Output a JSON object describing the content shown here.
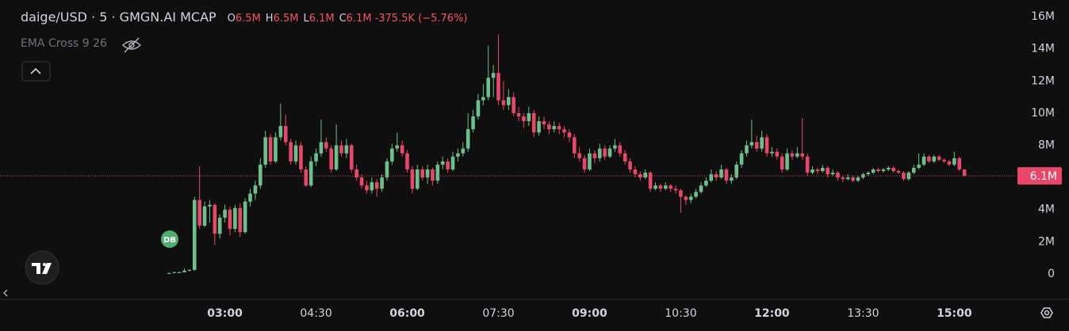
{
  "chart_data": {
    "type": "candlestick",
    "title": "daige/USD · 5 · GMGN.AI MCAP",
    "ohlc_legend": [
      {
        "key": "O",
        "value": "6.5M"
      },
      {
        "key": "H",
        "value": "6.5M"
      },
      {
        "key": "L",
        "value": "6.1M"
      },
      {
        "key": "C",
        "value": "6.1M"
      }
    ],
    "change": "-375.5K (−5.76%)",
    "indicator": "EMA Cross 9 26",
    "marker": "DB",
    "last_price_label": "6.1M",
    "up_color": "#6cc08b",
    "down_color": "#e9476a",
    "grid": false,
    "xlim": [
      -42,
      960
    ],
    "xticks": [
      {
        "value": 180,
        "label": "03:00"
      },
      {
        "value": 270,
        "label": "04:30"
      },
      {
        "value": 360,
        "label": "06:00"
      },
      {
        "value": 450,
        "label": "07:30"
      },
      {
        "value": 540,
        "label": "09:00"
      },
      {
        "value": 630,
        "label": "10:30"
      },
      {
        "value": 720,
        "label": "12:00"
      },
      {
        "value": 810,
        "label": "13:30"
      },
      {
        "value": 900,
        "label": "15:00"
      }
    ],
    "ylim": [
      -1.58,
      17.04
    ],
    "yticks": [
      0,
      {
        "value": 2,
        "label": "2M"
      },
      {
        "value": 4,
        "label": "4M"
      },
      {
        "value": 6,
        "label": "6M"
      },
      {
        "value": 8,
        "label": "8M"
      },
      {
        "value": 10,
        "label": "10M"
      },
      {
        "value": 12,
        "label": "12M"
      },
      {
        "value": 14,
        "label": "14M"
      },
      {
        "value": 16,
        "label": "16M"
      }
    ],
    "x": [
      125,
      130,
      135,
      140,
      145,
      150,
      155,
      160,
      165,
      170,
      175,
      180,
      185,
      190,
      195,
      200,
      205,
      210,
      215,
      220,
      225,
      230,
      235,
      240,
      245,
      250,
      255,
      260,
      265,
      270,
      275,
      280,
      285,
      290,
      295,
      300,
      305,
      310,
      315,
      320,
      325,
      330,
      335,
      340,
      345,
      350,
      355,
      360,
      365,
      370,
      375,
      380,
      385,
      390,
      395,
      400,
      405,
      410,
      415,
      420,
      425,
      430,
      435,
      440,
      445,
      450,
      455,
      460,
      465,
      470,
      475,
      480,
      485,
      490,
      495,
      500,
      505,
      510,
      515,
      520,
      525,
      530,
      535,
      540,
      545,
      550,
      555,
      560,
      565,
      570,
      575,
      580,
      585,
      590,
      595,
      600,
      605,
      610,
      615,
      620,
      625,
      630,
      635,
      640,
      645,
      650,
      655,
      660,
      665,
      670,
      675,
      680,
      685,
      690,
      695,
      700,
      705,
      710,
      715,
      720,
      725,
      730,
      735,
      740,
      745,
      750,
      755,
      760,
      765,
      770,
      775,
      780,
      785,
      790,
      795,
      800,
      805,
      810,
      815,
      820,
      825,
      830,
      835,
      840,
      845,
      850,
      855,
      860,
      865,
      870,
      875,
      880,
      885,
      890,
      895,
      900,
      905,
      910
    ],
    "candles": [
      [
        0.05,
        0.1,
        0.0,
        0.05
      ],
      [
        0.05,
        0.15,
        0.05,
        0.1
      ],
      [
        0.1,
        0.15,
        0.05,
        0.1
      ],
      [
        0.1,
        0.35,
        0.1,
        0.2
      ],
      [
        0.2,
        0.3,
        0.15,
        0.25
      ],
      [
        0.25,
        4.8,
        0.2,
        4.6
      ],
      [
        4.6,
        6.7,
        2.8,
        3.0
      ],
      [
        3.0,
        4.5,
        2.9,
        4.2
      ],
      [
        4.2,
        4.6,
        3.2,
        4.3
      ],
      [
        4.3,
        4.4,
        1.8,
        2.5
      ],
      [
        2.5,
        3.7,
        2.2,
        3.5
      ],
      [
        3.5,
        4.3,
        3.2,
        4.0
      ],
      [
        4.0,
        4.2,
        2.4,
        2.8
      ],
      [
        2.8,
        4.3,
        2.6,
        4.1
      ],
      [
        4.1,
        4.4,
        2.3,
        2.6
      ],
      [
        2.6,
        4.7,
        2.5,
        4.5
      ],
      [
        4.5,
        5.3,
        4.2,
        5.0
      ],
      [
        5.0,
        5.8,
        4.6,
        5.5
      ],
      [
        5.5,
        7.2,
        5.3,
        6.8
      ],
      [
        6.8,
        8.9,
        6.6,
        8.5
      ],
      [
        8.5,
        8.7,
        6.8,
        7.0
      ],
      [
        7.0,
        8.8,
        6.9,
        8.5
      ],
      [
        8.5,
        10.6,
        8.3,
        9.2
      ],
      [
        9.2,
        9.9,
        8.0,
        8.2
      ],
      [
        8.2,
        8.4,
        6.8,
        7.0
      ],
      [
        7.0,
        8.3,
        6.8,
        8.0
      ],
      [
        8.0,
        8.2,
        6.3,
        6.5
      ],
      [
        6.5,
        6.7,
        5.4,
        5.5
      ],
      [
        5.5,
        7.3,
        5.4,
        7.0
      ],
      [
        7.0,
        7.8,
        6.7,
        7.5
      ],
      [
        7.5,
        9.6,
        7.3,
        8.2
      ],
      [
        8.2,
        8.5,
        7.6,
        7.8
      ],
      [
        7.8,
        8.0,
        6.3,
        6.5
      ],
      [
        6.5,
        9.3,
        6.4,
        8.0
      ],
      [
        8.0,
        8.3,
        7.3,
        7.5
      ],
      [
        7.5,
        8.4,
        7.2,
        8.0
      ],
      [
        8.0,
        8.1,
        6.3,
        6.5
      ],
      [
        6.5,
        6.8,
        5.8,
        6.0
      ],
      [
        6.0,
        6.2,
        5.3,
        5.5
      ],
      [
        5.5,
        5.8,
        5.0,
        5.2
      ],
      [
        5.2,
        6.0,
        5.0,
        5.7
      ],
      [
        5.7,
        5.9,
        4.8,
        5.3
      ],
      [
        5.3,
        6.2,
        5.1,
        6.0
      ],
      [
        6.0,
        7.2,
        5.8,
        7.0
      ],
      [
        7.0,
        8.1,
        6.8,
        7.8
      ],
      [
        7.8,
        8.8,
        7.6,
        8.0
      ],
      [
        8.0,
        8.3,
        7.3,
        7.5
      ],
      [
        7.5,
        7.7,
        6.3,
        6.5
      ],
      [
        6.5,
        6.7,
        5.0,
        5.3
      ],
      [
        5.3,
        6.8,
        5.2,
        6.5
      ],
      [
        6.5,
        6.7,
        5.8,
        6.0
      ],
      [
        6.0,
        6.8,
        5.6,
        6.5
      ],
      [
        6.5,
        6.6,
        5.5,
        5.8
      ],
      [
        5.8,
        7.0,
        5.6,
        6.8
      ],
      [
        6.8,
        7.3,
        6.5,
        7.0
      ],
      [
        7.0,
        7.2,
        6.3,
        6.5
      ],
      [
        6.5,
        7.6,
        6.4,
        7.3
      ],
      [
        7.3,
        7.8,
        7.0,
        7.5
      ],
      [
        7.5,
        8.2,
        7.3,
        7.8
      ],
      [
        7.8,
        10.0,
        7.6,
        9.0
      ],
      [
        9.0,
        10.2,
        8.8,
        9.8
      ],
      [
        9.8,
        11.2,
        9.6,
        10.8
      ],
      [
        10.8,
        11.8,
        10.5,
        11.0
      ],
      [
        11.0,
        14.2,
        10.8,
        12.2
      ],
      [
        12.2,
        13.0,
        11.0,
        12.5
      ],
      [
        12.5,
        14.9,
        10.5,
        10.8
      ],
      [
        10.8,
        12.0,
        10.2,
        10.5
      ],
      [
        10.5,
        11.5,
        10.2,
        11.0
      ],
      [
        11.0,
        11.3,
        9.8,
        10.0
      ],
      [
        10.0,
        10.4,
        9.5,
        9.8
      ],
      [
        9.8,
        10.0,
        9.1,
        9.5
      ],
      [
        9.5,
        10.4,
        9.2,
        10.0
      ],
      [
        10.0,
        10.2,
        8.5,
        8.8
      ],
      [
        8.8,
        9.8,
        8.6,
        9.5
      ],
      [
        9.5,
        9.8,
        9.0,
        9.3
      ],
      [
        9.3,
        9.5,
        8.7,
        9.0
      ],
      [
        9.0,
        9.5,
        8.8,
        9.2
      ],
      [
        9.2,
        9.4,
        8.7,
        9.0
      ],
      [
        9.0,
        9.2,
        8.5,
        8.8
      ],
      [
        8.8,
        9.0,
        8.2,
        8.5
      ],
      [
        8.5,
        8.7,
        7.2,
        7.5
      ],
      [
        7.5,
        7.9,
        7.0,
        7.2
      ],
      [
        7.2,
        7.4,
        6.3,
        6.5
      ],
      [
        6.5,
        7.8,
        6.4,
        7.5
      ],
      [
        7.5,
        7.7,
        6.9,
        7.2
      ],
      [
        7.2,
        8.1,
        7.0,
        7.8
      ],
      [
        7.8,
        8.0,
        7.1,
        7.3
      ],
      [
        7.3,
        8.0,
        7.2,
        7.8
      ],
      [
        7.8,
        8.4,
        7.6,
        8.0
      ],
      [
        8.0,
        8.2,
        7.3,
        7.5
      ],
      [
        7.5,
        7.7,
        6.8,
        7.0
      ],
      [
        7.0,
        7.2,
        6.3,
        6.5
      ],
      [
        6.5,
        6.7,
        6.0,
        6.2
      ],
      [
        6.2,
        6.4,
        5.8,
        6.0
      ],
      [
        6.0,
        6.5,
        5.9,
        6.3
      ],
      [
        6.3,
        6.4,
        5.1,
        5.3
      ],
      [
        5.3,
        5.7,
        5.2,
        5.5
      ],
      [
        5.5,
        5.6,
        5.1,
        5.3
      ],
      [
        5.3,
        5.7,
        5.2,
        5.5
      ],
      [
        5.5,
        5.6,
        5.1,
        5.3
      ],
      [
        5.3,
        5.5,
        5.0,
        5.2
      ],
      [
        5.2,
        5.3,
        3.8,
        4.8
      ],
      [
        4.8,
        4.9,
        4.3,
        4.6
      ],
      [
        4.6,
        5.0,
        4.4,
        4.8
      ],
      [
        4.8,
        5.3,
        4.7,
        5.1
      ],
      [
        5.1,
        5.7,
        5.0,
        5.5
      ],
      [
        5.5,
        6.0,
        5.4,
        5.8
      ],
      [
        5.8,
        6.5,
        5.7,
        6.2
      ],
      [
        6.2,
        6.4,
        5.8,
        6.0
      ],
      [
        6.0,
        6.8,
        5.9,
        6.5
      ],
      [
        6.5,
        6.6,
        5.6,
        5.8
      ],
      [
        5.8,
        6.2,
        5.6,
        6.0
      ],
      [
        6.0,
        7.0,
        5.9,
        6.8
      ],
      [
        6.8,
        7.7,
        6.6,
        7.5
      ],
      [
        7.5,
        8.3,
        7.3,
        8.0
      ],
      [
        8.0,
        9.6,
        7.8,
        8.2
      ],
      [
        8.2,
        8.6,
        7.6,
        7.8
      ],
      [
        7.8,
        8.9,
        7.6,
        8.5
      ],
      [
        8.5,
        8.7,
        7.3,
        7.5
      ],
      [
        7.5,
        7.9,
        7.3,
        7.6
      ],
      [
        7.6,
        7.8,
        7.1,
        7.3
      ],
      [
        7.3,
        7.5,
        6.3,
        6.5
      ],
      [
        6.5,
        7.8,
        6.4,
        7.5
      ],
      [
        7.5,
        7.7,
        7.1,
        7.3
      ],
      [
        7.3,
        7.9,
        7.2,
        7.5
      ],
      [
        7.5,
        9.7,
        7.1,
        7.3
      ],
      [
        7.3,
        7.5,
        6.1,
        6.3
      ],
      [
        6.3,
        6.7,
        6.2,
        6.5
      ],
      [
        6.5,
        6.6,
        6.2,
        6.4
      ],
      [
        6.4,
        6.8,
        6.3,
        6.6
      ],
      [
        6.6,
        6.7,
        6.0,
        6.2
      ],
      [
        6.2,
        6.5,
        6.1,
        6.3
      ],
      [
        6.3,
        6.4,
        5.8,
        6.0
      ],
      [
        6.0,
        6.1,
        5.7,
        5.9
      ],
      [
        5.9,
        6.2,
        5.8,
        6.0
      ],
      [
        6.0,
        6.1,
        5.7,
        5.8
      ],
      [
        5.8,
        6.1,
        5.7,
        6.0
      ],
      [
        6.0,
        6.3,
        5.9,
        6.2
      ],
      [
        6.2,
        6.4,
        6.1,
        6.3
      ],
      [
        6.3,
        6.6,
        6.2,
        6.5
      ],
      [
        6.5,
        6.6,
        6.3,
        6.4
      ],
      [
        6.4,
        6.6,
        6.3,
        6.5
      ],
      [
        6.5,
        6.7,
        6.4,
        6.6
      ],
      [
        6.6,
        6.7,
        6.3,
        6.4
      ],
      [
        6.4,
        6.5,
        6.2,
        6.3
      ],
      [
        6.3,
        6.4,
        5.8,
        5.9
      ],
      [
        5.9,
        6.4,
        5.8,
        6.3
      ],
      [
        6.3,
        6.8,
        6.2,
        6.6
      ],
      [
        6.6,
        7.5,
        6.5,
        6.8
      ],
      [
        6.8,
        7.5,
        6.7,
        7.3
      ],
      [
        7.3,
        7.4,
        6.9,
        7.0
      ],
      [
        7.0,
        7.4,
        6.9,
        7.3
      ],
      [
        7.3,
        7.4,
        7.0,
        7.1
      ],
      [
        7.1,
        7.2,
        6.9,
        7.0
      ],
      [
        7.0,
        7.1,
        6.7,
        6.8
      ],
      [
        6.8,
        7.6,
        6.7,
        7.2
      ],
      [
        7.2,
        7.3,
        6.4,
        6.5
      ],
      [
        6.5,
        6.5,
        6.1,
        6.1
      ]
    ]
  }
}
